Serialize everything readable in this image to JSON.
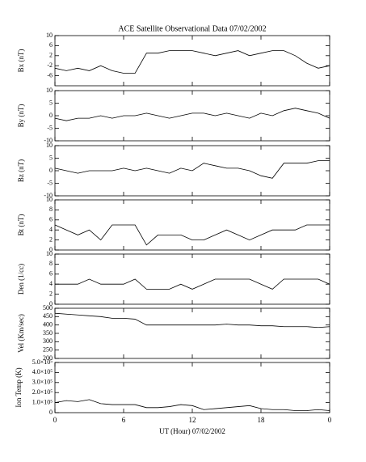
{
  "chart_data": [
    {
      "type": "line",
      "title": "ACE Satellite Observational Data   07/02/2002",
      "ylabel": "Bx (nT)",
      "x": [
        0,
        1,
        2,
        3,
        4,
        5,
        6,
        7,
        8,
        9,
        10,
        11,
        12,
        13,
        14,
        15,
        16,
        17,
        18,
        19,
        20,
        21,
        22,
        23,
        24
      ],
      "values": [
        -3,
        -4,
        -3,
        -4,
        -2,
        -4,
        -5,
        -5,
        3,
        3,
        4,
        4,
        4,
        3,
        2,
        3,
        4,
        2,
        3,
        4,
        4,
        2,
        -1,
        -3,
        -2
      ],
      "color": "#000000",
      "xlim": [
        0,
        24
      ],
      "xticks": [
        0,
        6,
        12,
        18,
        24
      ],
      "ylim": [
        -10,
        10
      ],
      "yticks": [
        -6,
        -2,
        2,
        6,
        10
      ]
    },
    {
      "type": "line",
      "ylabel": "By (nT)",
      "x": [
        0,
        1,
        2,
        3,
        4,
        5,
        6,
        7,
        8,
        9,
        10,
        11,
        12,
        13,
        14,
        15,
        16,
        17,
        18,
        19,
        20,
        21,
        22,
        23,
        24
      ],
      "values": [
        -1,
        -2,
        -1,
        -1,
        0,
        -1,
        0,
        0,
        1,
        0,
        -1,
        0,
        1,
        1,
        0,
        1,
        0,
        -1,
        1,
        0,
        2,
        3,
        2,
        1,
        -1
      ],
      "color": "#000000",
      "xlim": [
        0,
        24
      ],
      "xticks": [
        0,
        6,
        12,
        18,
        24
      ],
      "ylim": [
        -10,
        10
      ],
      "yticks": [
        -10,
        -5,
        0,
        5,
        10
      ]
    },
    {
      "type": "line",
      "ylabel": "Bz (nT)",
      "x": [
        0,
        1,
        2,
        3,
        4,
        5,
        6,
        7,
        8,
        9,
        10,
        11,
        12,
        13,
        14,
        15,
        16,
        17,
        18,
        19,
        20,
        21,
        22,
        23,
        24
      ],
      "values": [
        1,
        0,
        -1,
        0,
        0,
        0,
        1,
        0,
        1,
        0,
        -1,
        1,
        0,
        3,
        2,
        1,
        1,
        0,
        -2,
        -3,
        3,
        3,
        3,
        4,
        4
      ],
      "color": "#000000",
      "xlim": [
        0,
        24
      ],
      "xticks": [
        0,
        6,
        12,
        18,
        24
      ],
      "ylim": [
        -10,
        10
      ],
      "yticks": [
        -10,
        -5,
        0,
        5,
        10
      ]
    },
    {
      "type": "line",
      "ylabel": "Bt (nT)",
      "x": [
        0,
        1,
        2,
        3,
        4,
        5,
        6,
        7,
        8,
        9,
        10,
        11,
        12,
        13,
        14,
        15,
        16,
        17,
        18,
        19,
        20,
        21,
        22,
        23,
        24
      ],
      "values": [
        5,
        4,
        3,
        4,
        2,
        5,
        5,
        5,
        1,
        3,
        3,
        3,
        2,
        2,
        3,
        4,
        3,
        2,
        3,
        4,
        4,
        4,
        5,
        5,
        5
      ],
      "color": "#000000",
      "xlim": [
        0,
        24
      ],
      "xticks": [
        0,
        6,
        12,
        18,
        24
      ],
      "ylim": [
        0,
        10
      ],
      "yticks": [
        0,
        2,
        4,
        6,
        8,
        10
      ]
    },
    {
      "type": "line",
      "ylabel": "Den (1/cc)",
      "x": [
        0,
        1,
        2,
        3,
        4,
        5,
        6,
        7,
        8,
        9,
        10,
        11,
        12,
        13,
        14,
        15,
        16,
        17,
        18,
        19,
        20,
        21,
        22,
        23,
        24
      ],
      "values": [
        4,
        4,
        4,
        5,
        4,
        4,
        4,
        5,
        3,
        3,
        3,
        4,
        3,
        4,
        5,
        5,
        5,
        5,
        4,
        3,
        5,
        5,
        5,
        5,
        4
      ],
      "color": "#000000",
      "xlim": [
        0,
        24
      ],
      "xticks": [
        0,
        6,
        12,
        18,
        24
      ],
      "ylim": [
        0,
        10
      ],
      "yticks": [
        0,
        2,
        4,
        6,
        8,
        10
      ]
    },
    {
      "type": "line",
      "ylabel": "Vel (Km/sec)",
      "x": [
        0,
        1,
        2,
        3,
        4,
        5,
        6,
        7,
        8,
        9,
        10,
        11,
        12,
        13,
        14,
        15,
        16,
        17,
        18,
        19,
        20,
        21,
        22,
        23,
        24
      ],
      "values": [
        470,
        465,
        460,
        455,
        450,
        440,
        440,
        435,
        400,
        400,
        400,
        400,
        400,
        400,
        400,
        405,
        400,
        400,
        395,
        395,
        390,
        390,
        390,
        385,
        390
      ],
      "color": "#000000",
      "xlim": [
        0,
        24
      ],
      "xticks": [
        0,
        6,
        12,
        18,
        24
      ],
      "ylim": [
        200,
        500
      ],
      "yticks": [
        200,
        250,
        300,
        350,
        400,
        450,
        500
      ]
    },
    {
      "type": "line",
      "ylabel": "Ion Temp (K)",
      "xlabel": "UT (Hour)  07/02/2002",
      "x": [
        0,
        1,
        2,
        3,
        4,
        5,
        6,
        7,
        8,
        9,
        10,
        11,
        12,
        13,
        14,
        15,
        16,
        17,
        18,
        19,
        20,
        21,
        22,
        23,
        24
      ],
      "values": [
        100000,
        120000,
        110000,
        130000,
        90000,
        80000,
        80000,
        80000,
        50000,
        50000,
        60000,
        80000,
        70000,
        30000,
        40000,
        50000,
        60000,
        70000,
        40000,
        30000,
        30000,
        20000,
        20000,
        30000,
        20000
      ],
      "color": "#000000",
      "xlim": [
        0,
        24
      ],
      "xticks": [
        0,
        6,
        12,
        18,
        {
          "value": 24,
          "label": "0"
        }
      ],
      "ylim": [
        0,
        500000
      ],
      "yticks": [
        0,
        {
          "value": 100000,
          "label": "1.0×10⁵"
        },
        {
          "value": 200000,
          "label": "2.0×10⁵"
        },
        {
          "value": 300000,
          "label": "3.0×10⁵"
        },
        {
          "value": 400000,
          "label": "4.0×10⁵"
        },
        {
          "value": 500000,
          "label": "5.0×10⁵"
        }
      ]
    }
  ]
}
